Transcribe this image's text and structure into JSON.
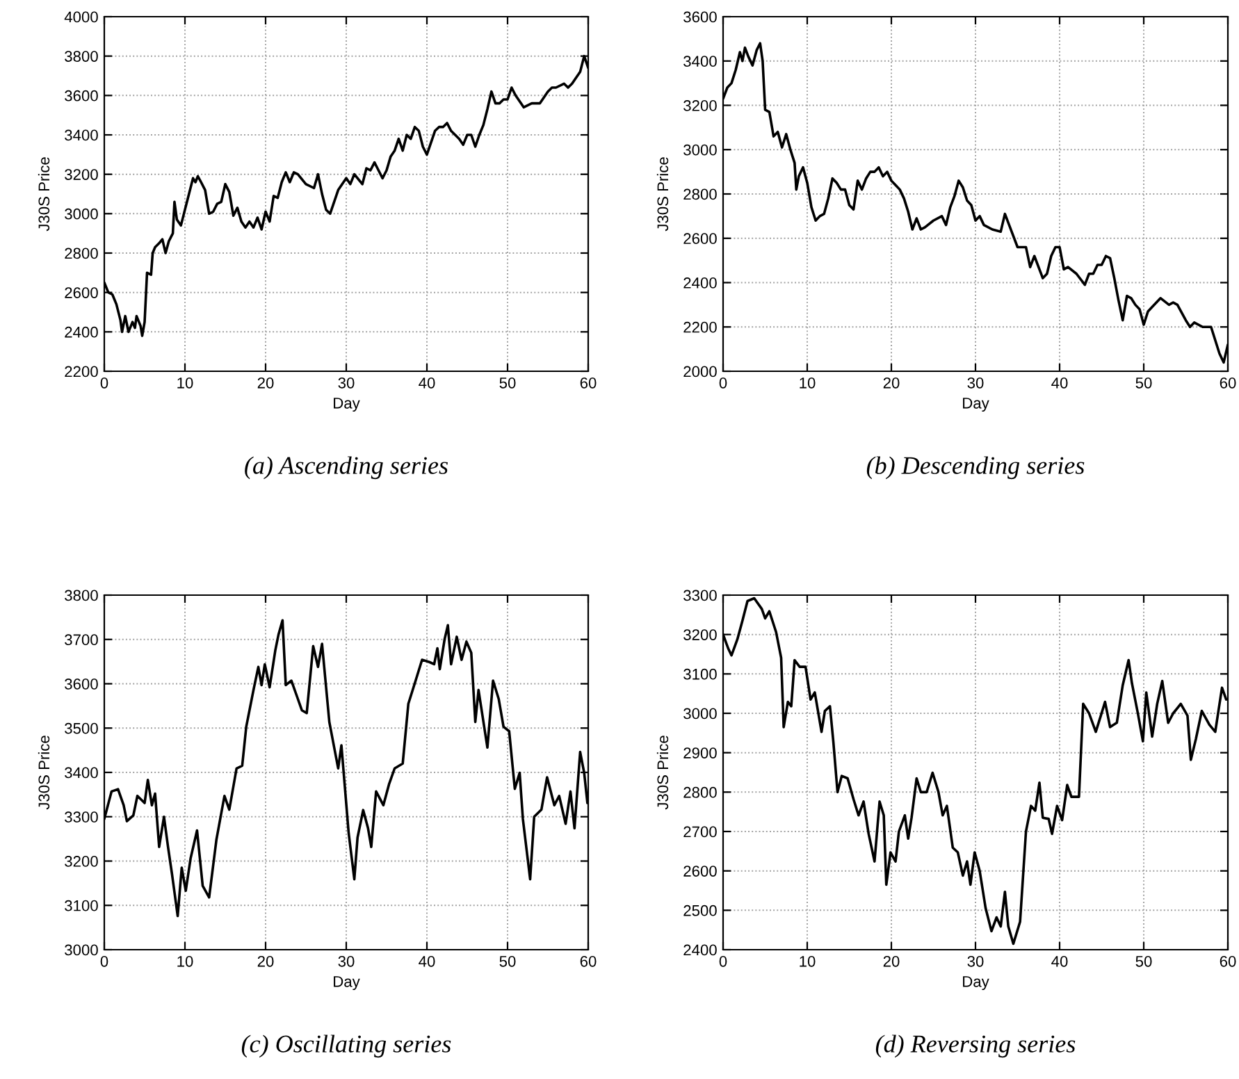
{
  "chart_data": [
    {
      "type": "line",
      "title": "(a) Ascending series",
      "xlabel": "Day",
      "ylabel": "J30S Price",
      "xlim": [
        0,
        60
      ],
      "xticks": [
        0,
        10,
        20,
        30,
        40,
        50,
        60
      ],
      "ylim": [
        2200,
        4000
      ],
      "yticks": [
        2200,
        2400,
        2600,
        2800,
        3000,
        3200,
        3400,
        3600,
        3800,
        4000
      ],
      "grid": true,
      "series": [
        {
          "color": "#000000",
          "x": [
            0,
            0.5,
            1,
            1.5,
            2,
            2.2,
            2.6,
            3,
            3.5,
            3.8,
            4,
            4.5,
            4.7,
            5,
            5.3,
            5.8,
            6,
            6.3,
            6.8,
            7.2,
            7.6,
            8,
            8.5,
            8.7,
            9,
            9.5,
            10,
            10.5,
            11,
            11.3,
            11.6,
            12,
            12.5,
            13,
            13.5,
            14,
            14.5,
            15,
            15.5,
            16,
            16.5,
            17,
            17.5,
            18,
            18.5,
            19,
            19.5,
            20,
            20.5,
            21,
            21.5,
            22,
            22.5,
            23,
            23.5,
            24,
            25,
            26,
            26.5,
            27,
            27.5,
            28,
            28.5,
            29,
            30,
            30.5,
            31,
            32,
            32.5,
            33,
            33.5,
            34,
            34.5,
            35,
            35.5,
            36,
            36.5,
            37,
            37.5,
            38,
            38.5,
            39,
            39.5,
            40,
            40.5,
            41,
            41.5,
            42,
            42.5,
            43,
            43.5,
            44,
            44.5,
            45,
            45.5,
            46,
            46.5,
            47,
            47.5,
            48,
            48.5,
            49,
            49.5,
            50,
            50.5,
            51,
            52,
            53,
            54,
            54.5,
            55,
            55.5,
            56,
            57,
            57.5,
            58,
            59,
            59.5,
            60
          ],
          "values": [
            2650,
            2600,
            2590,
            2540,
            2460,
            2400,
            2480,
            2400,
            2450,
            2420,
            2480,
            2430,
            2380,
            2450,
            2700,
            2690,
            2800,
            2830,
            2850,
            2870,
            2800,
            2860,
            2900,
            3060,
            2970,
            2940,
            3020,
            3100,
            3180,
            3160,
            3190,
            3160,
            3120,
            3000,
            3010,
            3050,
            3060,
            3150,
            3110,
            2990,
            3030,
            2960,
            2930,
            2960,
            2930,
            2980,
            2920,
            3010,
            2960,
            3090,
            3080,
            3160,
            3210,
            3160,
            3210,
            3200,
            3150,
            3130,
            3200,
            3100,
            3020,
            3000,
            3060,
            3120,
            3180,
            3150,
            3200,
            3150,
            3230,
            3220,
            3260,
            3220,
            3180,
            3220,
            3290,
            3320,
            3380,
            3320,
            3400,
            3380,
            3440,
            3420,
            3340,
            3300,
            3360,
            3420,
            3440,
            3440,
            3460,
            3420,
            3400,
            3380,
            3350,
            3400,
            3400,
            3340,
            3400,
            3450,
            3530,
            3620,
            3560,
            3560,
            3580,
            3580,
            3640,
            3600,
            3540,
            3560,
            3560,
            3590,
            3620,
            3640,
            3640,
            3660,
            3640,
            3660,
            3720,
            3800,
            3740
          ]
        }
      ]
    },
    {
      "type": "line",
      "title": "(b) Descending series",
      "xlabel": "Day",
      "ylabel": "J30S Price",
      "xlim": [
        0,
        60
      ],
      "xticks": [
        0,
        10,
        20,
        30,
        40,
        50,
        60
      ],
      "ylim": [
        2000,
        3600
      ],
      "yticks": [
        2000,
        2200,
        2400,
        2600,
        2800,
        3000,
        3200,
        3400,
        3600
      ],
      "grid": true,
      "series": [
        {
          "color": "#000000",
          "x": [
            0,
            0.5,
            1,
            1.5,
            2,
            2.3,
            2.6,
            3,
            3.5,
            4,
            4.4,
            4.7,
            5,
            5.5,
            6,
            6.5,
            7,
            7.5,
            8,
            8.5,
            8.7,
            9,
            9.5,
            10,
            10.5,
            11,
            11.5,
            12,
            12.5,
            13,
            13.5,
            14,
            14.5,
            15,
            15.5,
            16,
            16.5,
            17,
            17.5,
            18,
            18.5,
            19,
            19.5,
            20,
            20.5,
            21,
            21.5,
            22,
            22.5,
            23,
            23.5,
            24,
            25,
            26,
            26.5,
            27,
            27.5,
            28,
            28.5,
            29,
            29.5,
            30,
            30.5,
            31,
            32,
            33,
            33.5,
            34,
            35,
            36,
            36.5,
            37,
            38,
            38.5,
            39,
            39.5,
            40,
            40.5,
            41,
            42,
            43,
            43.5,
            44,
            44.5,
            45,
            45.5,
            46,
            46.5,
            47,
            47.5,
            48,
            48.5,
            49,
            49.5,
            50,
            50.5,
            51,
            52,
            53,
            53.5,
            54,
            55,
            55.5,
            56,
            57,
            58,
            59,
            59.5,
            60
          ],
          "values": [
            3230,
            3280,
            3300,
            3360,
            3440,
            3400,
            3460,
            3420,
            3380,
            3450,
            3480,
            3400,
            3180,
            3170,
            3060,
            3080,
            3010,
            3070,
            3000,
            2940,
            2820,
            2880,
            2920,
            2850,
            2740,
            2680,
            2700,
            2710,
            2780,
            2870,
            2850,
            2820,
            2820,
            2750,
            2730,
            2860,
            2820,
            2870,
            2900,
            2900,
            2920,
            2880,
            2900,
            2860,
            2840,
            2820,
            2780,
            2720,
            2640,
            2690,
            2640,
            2650,
            2680,
            2700,
            2660,
            2740,
            2790,
            2860,
            2830,
            2770,
            2750,
            2680,
            2700,
            2660,
            2640,
            2630,
            2710,
            2660,
            2560,
            2560,
            2470,
            2520,
            2420,
            2440,
            2520,
            2560,
            2560,
            2460,
            2470,
            2440,
            2390,
            2440,
            2440,
            2480,
            2480,
            2520,
            2510,
            2420,
            2320,
            2230,
            2340,
            2330,
            2300,
            2280,
            2210,
            2270,
            2290,
            2330,
            2300,
            2310,
            2300,
            2230,
            2200,
            2220,
            2200,
            2200,
            2080,
            2040,
            2120
          ]
        }
      ]
    },
    {
      "type": "line",
      "title": "(c) Oscillating series",
      "xlabel": "Day",
      "ylabel": "J30S Price",
      "xlim": [
        0,
        60
      ],
      "xticks": [
        0,
        10,
        20,
        30,
        40,
        50,
        60
      ],
      "ylim": [
        3000,
        3800
      ],
      "yticks": [
        3000,
        3100,
        3200,
        3300,
        3400,
        3500,
        3600,
        3700,
        3800
      ],
      "grid": true,
      "series": [
        {
          "color": "#000000",
          "x": [
            0,
            0.9,
            1.7,
            2.4,
            2.8,
            3.6,
            4.1,
            5,
            5.4,
            5.9,
            6.3,
            6.8,
            7.4,
            7.9,
            8.4,
            9.1,
            9.6,
            10.1,
            10.7,
            11.5,
            12.2,
            13,
            13.9,
            14.9,
            15.5,
            16.4,
            17.1,
            17.6,
            18.5,
            19.1,
            19.5,
            19.9,
            20.5,
            21.2,
            21.6,
            22.1,
            22.5,
            23.2,
            23.9,
            24.5,
            25.1,
            25.9,
            26.5,
            27,
            27.9,
            29,
            29.4,
            30.3,
            31,
            31.4,
            32.1,
            32.7,
            33.1,
            33.7,
            34.6,
            35.3,
            36,
            37,
            37.7,
            38.6,
            39.4,
            40.3,
            40.9,
            41.3,
            41.6,
            42.2,
            42.6,
            43,
            43.7,
            44.3,
            44.9,
            45.5,
            46,
            46.4,
            47.5,
            48.2,
            48.9,
            49.5,
            50.2,
            50.9,
            51.5,
            51.9,
            52.8,
            53.3,
            54.2,
            54.9,
            55.8,
            56.4,
            57.2,
            57.8,
            58.3,
            59,
            59.5,
            59.9
          ],
          "values": [
            3295,
            3357,
            3362,
            3326,
            3290,
            3303,
            3347,
            3331,
            3383,
            3326,
            3352,
            3232,
            3300,
            3232,
            3170,
            3076,
            3185,
            3133,
            3206,
            3269,
            3144,
            3118,
            3248,
            3347,
            3316,
            3409,
            3415,
            3503,
            3586,
            3638,
            3597,
            3644,
            3592,
            3675,
            3711,
            3743,
            3597,
            3607,
            3571,
            3540,
            3534,
            3685,
            3638,
            3690,
            3514,
            3409,
            3461,
            3263,
            3159,
            3253,
            3315,
            3274,
            3232,
            3357,
            3326,
            3373,
            3409,
            3420,
            3555,
            3607,
            3654,
            3649,
            3644,
            3680,
            3633,
            3701,
            3732,
            3644,
            3706,
            3654,
            3695,
            3670,
            3514,
            3586,
            3456,
            3607,
            3566,
            3503,
            3493,
            3363,
            3399,
            3295,
            3159,
            3300,
            3316,
            3389,
            3326,
            3347,
            3284,
            3357,
            3274,
            3446,
            3399,
            3331
          ]
        }
      ]
    },
    {
      "type": "line",
      "title": "(d) Reversing series",
      "xlabel": "Day",
      "ylabel": "J30S Price",
      "xlim": [
        0,
        60
      ],
      "xticks": [
        0,
        10,
        20,
        30,
        40,
        50,
        60
      ],
      "ylim": [
        2400,
        3300
      ],
      "yticks": [
        2400,
        2500,
        2600,
        2700,
        2800,
        2900,
        3000,
        3100,
        3200,
        3300
      ],
      "grid": true,
      "series": [
        {
          "color": "#000000",
          "x": [
            0,
            0.6,
            1,
            1.7,
            2.3,
            2.9,
            3.7,
            4.6,
            5,
            5.5,
            6.3,
            6.9,
            7.2,
            7.7,
            8.1,
            8.5,
            9.1,
            9.8,
            10.4,
            10.9,
            11.7,
            12.1,
            12.7,
            13.1,
            13.6,
            14.1,
            14.8,
            15.5,
            16.1,
            16.7,
            17.3,
            18,
            18.6,
            19.1,
            19.4,
            19.9,
            20.5,
            20.9,
            21.6,
            22,
            22.4,
            23,
            23.5,
            24.2,
            24.9,
            25.6,
            26.1,
            26.6,
            27.3,
            27.9,
            28.5,
            29,
            29.4,
            29.9,
            30.5,
            31.2,
            31.9,
            32.5,
            33,
            33.5,
            33.9,
            34.5,
            35.3,
            36,
            36.6,
            37.1,
            37.6,
            38,
            38.7,
            39.1,
            39.7,
            40.3,
            40.9,
            41.4,
            42.3,
            42.8,
            43.5,
            44.3,
            44.9,
            45.4,
            46,
            46.8,
            47.5,
            48.2,
            48.6,
            49.3,
            49.9,
            50.3,
            51,
            51.6,
            52.2,
            52.9,
            53.5,
            54.4,
            55.2,
            55.6,
            56.2,
            56.9,
            57.8,
            58.5,
            59.3,
            59.8
          ],
          "values": [
            3200,
            3165,
            3147,
            3188,
            3235,
            3285,
            3292,
            3265,
            3241,
            3259,
            3206,
            3141,
            2965,
            3029,
            3018,
            3135,
            3118,
            3118,
            3035,
            3053,
            2953,
            3006,
            3018,
            2929,
            2800,
            2841,
            2835,
            2782,
            2741,
            2776,
            2694,
            2624,
            2776,
            2741,
            2565,
            2647,
            2624,
            2700,
            2741,
            2682,
            2735,
            2835,
            2800,
            2800,
            2849,
            2800,
            2741,
            2765,
            2659,
            2647,
            2588,
            2624,
            2565,
            2647,
            2600,
            2506,
            2447,
            2482,
            2459,
            2547,
            2459,
            2415,
            2471,
            2700,
            2765,
            2753,
            2824,
            2735,
            2732,
            2694,
            2765,
            2729,
            2818,
            2788,
            2788,
            3024,
            3000,
            2953,
            2994,
            3029,
            2965,
            2976,
            3071,
            3135,
            3076,
            3000,
            2929,
            3053,
            2941,
            3024,
            3082,
            2976,
            3000,
            3024,
            2994,
            2882,
            2935,
            3006,
            2971,
            2953,
            3065,
            3035
          ]
        }
      ]
    }
  ]
}
